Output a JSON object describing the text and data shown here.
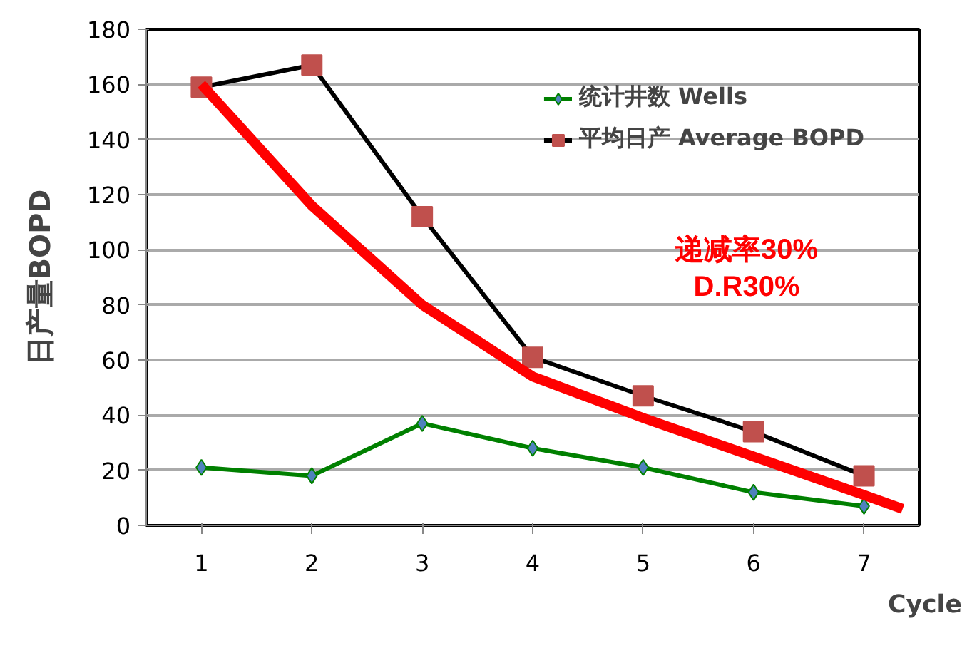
{
  "chart_data": {
    "type": "line",
    "xlabel": "Cycle",
    "ylabel": "日产量BOPD",
    "x": [
      1,
      2,
      3,
      4,
      5,
      6,
      7
    ],
    "xlim": [
      0.5,
      7.5
    ],
    "xticks": [
      1,
      2,
      3,
      4,
      5,
      6,
      7
    ],
    "ylim": [
      0,
      180
    ],
    "yticks": [
      0,
      20,
      40,
      60,
      80,
      100,
      120,
      140,
      160,
      180
    ],
    "grid": "y",
    "legend": "top right",
    "series": [
      {
        "name": "统计井数 Wells",
        "color": "#008000",
        "marker": "diamond",
        "values": [
          21,
          18,
          37,
          28,
          21,
          12,
          7
        ]
      },
      {
        "name": "平均日产 Average BOPD",
        "color": "#000000",
        "marker": "square",
        "values": [
          159,
          167,
          112,
          61,
          47,
          34,
          18
        ]
      },
      {
        "color": "#ff0000",
        "marker": "none",
        "x": [
          1,
          2,
          3,
          4,
          5,
          6,
          7,
          7.35
        ],
        "values": [
          160,
          116,
          80,
          54,
          39,
          25,
          11,
          6
        ]
      }
    ],
    "annotations": [
      "递减率30%\nD.R30%"
    ]
  }
}
